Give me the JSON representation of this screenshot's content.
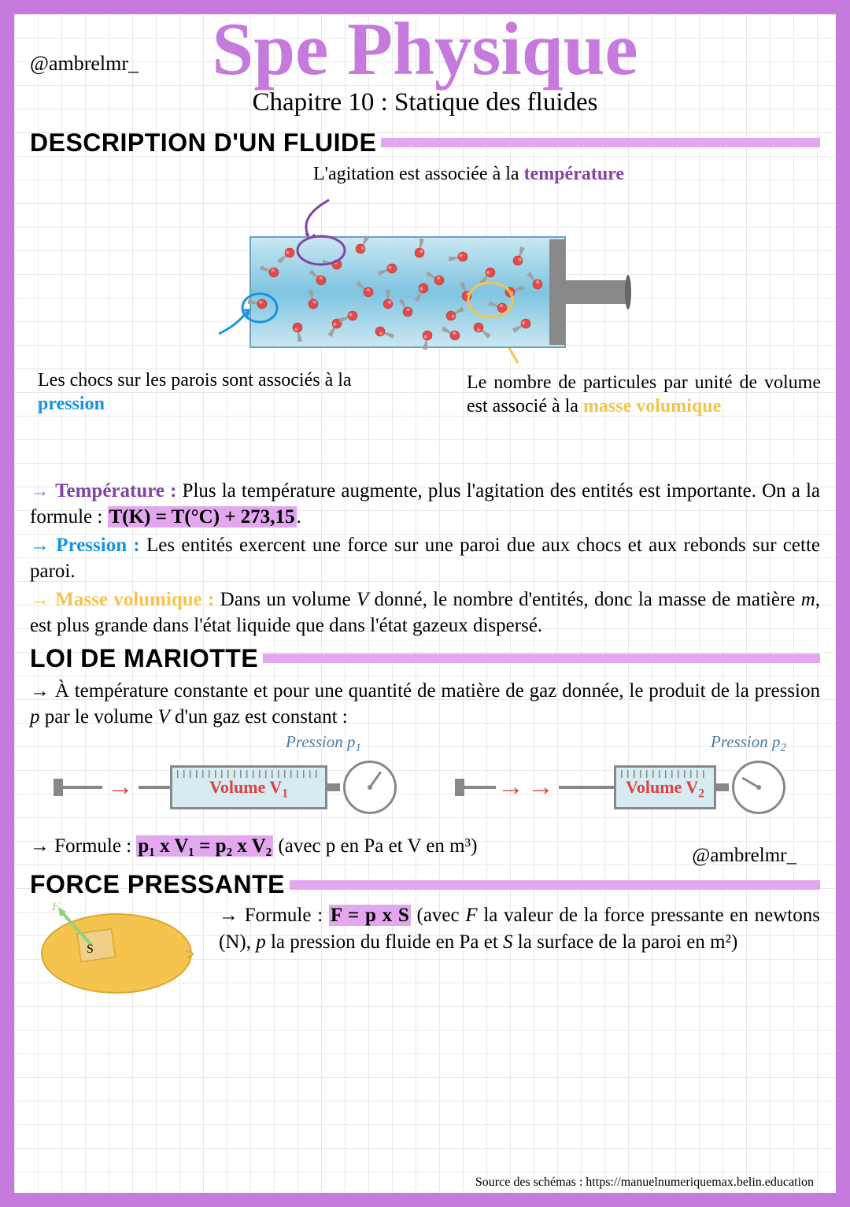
{
  "handle": "@ambrelmr_",
  "title": "Spe Physique",
  "chapter": "Chapitre 10 : Statique des fluides",
  "sections": {
    "desc": "DESCRIPTION D'UN FLUIDE",
    "mariotte": "LOI DE MARIOTTE",
    "force": "FORCE PRESSANTE"
  },
  "diagram": {
    "top_pre": "L'agitation est associée à la ",
    "top_key": "température",
    "left_pre": "Les chocs sur les parois sont associés à la ",
    "left_key": "pression",
    "right_pre": "Le nombre de particules par unité de volume est associé à la ",
    "right_key": "masse volumique",
    "colors": {
      "cylinder_fill": "#87c9e5",
      "cylinder_border": "#6fa2b8",
      "particle": "#e34b4b",
      "particle_dark": "#a82828",
      "tail": "#a0a0a0",
      "circle_purple": "#8344a8",
      "circle_blue": "#1694e0",
      "circle_yellow": "#f4c44e",
      "piston": "#888888"
    }
  },
  "definitions": {
    "temp_arrow": "→",
    "temp_label": "Température :",
    "temp_text": " Plus la température augmente, plus l'agitation des entités est importante. On a la formule : ",
    "temp_formula": "T(K) = T(°C) + 273,15",
    "press_arrow": "→",
    "press_label": "Pression :",
    "press_text": " Les entités exercent une force sur une paroi due aux chocs et aux rebonds sur cette paroi.",
    "mass_arrow": "→",
    "mass_label": "Masse volumique :",
    "mass_text_a": " Dans un volume ",
    "mass_text_v": "V",
    "mass_text_b": " donné, le nombre d'entités, donc la masse de matière ",
    "mass_text_m": "m",
    "mass_text_c": ", est plus grande dans l'état liquide que dans l'état gazeux dispersé."
  },
  "mariotte": {
    "intro_arrow": "→",
    "intro_text": " À température constante et pour une quantité de matière de gaz donnée, le produit de la pression ",
    "intro_p": "p",
    "intro_text2": " par le volume ",
    "intro_v": "V",
    "intro_text3": " d'un gaz est constant :",
    "p1": "Pression p",
    "p2": "Pression p",
    "v1": "Volume V",
    "v2": "Volume V",
    "formula_pre": "→ Formule : ",
    "formula": "p₁ x V₁ = p₂ x V₂",
    "formula_post": " (avec p en Pa et V en m³)"
  },
  "force": {
    "formula_pre": "→ Formule : ",
    "formula": "F = p x S",
    "formula_post_a": " (avec ",
    "F": "F",
    "text_a": " la valeur de la force pressante en newtons (N), ",
    "p": "p",
    "text_b": " la pression du fluide en Pa et ",
    "S": "S",
    "text_c": " la surface de la paroi en m²)",
    "lemon": {
      "fill": "#f4c44e",
      "lemon_dark": "#d8a830",
      "square_fill": "#f0d088",
      "arrow": "#8fd478",
      "F_label": "F",
      "S_label": "S"
    }
  },
  "source": "Source des schémas : https://manuelnumeriquemax.belin.education",
  "colors": {
    "border": "#c77add",
    "highlight": "#e2a7ef",
    "grid": "#e8e8e8",
    "text": "#000000"
  }
}
